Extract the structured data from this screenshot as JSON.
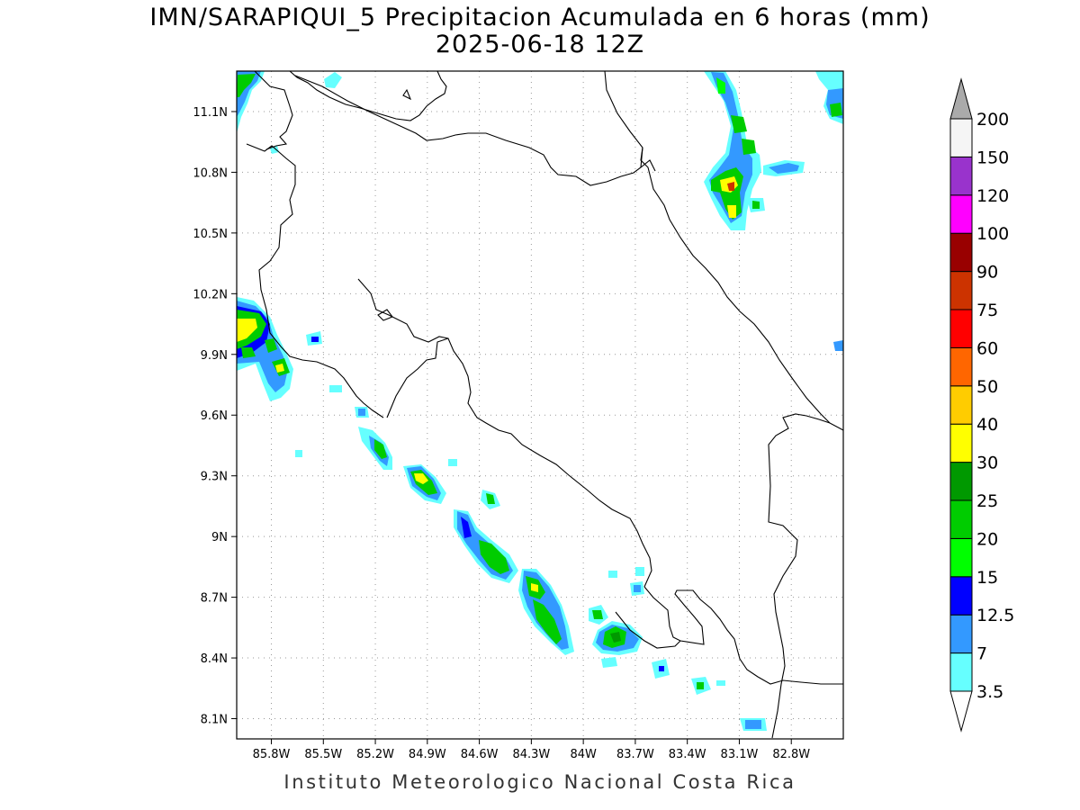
{
  "title": {
    "line1": "IMN/SARAPIQUI_5 Precipitacion Acumulada en 6 horas (mm)",
    "line2": "2025-06-18 12Z"
  },
  "footer": "Instituto Meteorologico Nacional Costa Rica",
  "map": {
    "lon_range": [
      -86.0,
      -82.5
    ],
    "lat_range": [
      8.0,
      11.3
    ],
    "lon_ticks": [
      {
        "value": -85.8,
        "label": "85.8W"
      },
      {
        "value": -85.5,
        "label": "85.5W"
      },
      {
        "value": -85.2,
        "label": "85.2W"
      },
      {
        "value": -84.9,
        "label": "84.9W"
      },
      {
        "value": -84.6,
        "label": "84.6W"
      },
      {
        "value": -84.3,
        "label": "84.3W"
      },
      {
        "value": -84.0,
        "label": "84W"
      },
      {
        "value": -83.7,
        "label": "83.7W"
      },
      {
        "value": -83.4,
        "label": "83.4W"
      },
      {
        "value": -83.1,
        "label": "83.1W"
      },
      {
        "value": -82.8,
        "label": "82.8W"
      }
    ],
    "lat_ticks": [
      {
        "value": 8.1,
        "label": "8.1N"
      },
      {
        "value": 8.4,
        "label": "8.4N"
      },
      {
        "value": 8.7,
        "label": "8.7N"
      },
      {
        "value": 9.0,
        "label": "9N"
      },
      {
        "value": 9.3,
        "label": "9.3N"
      },
      {
        "value": 9.6,
        "label": "9.6N"
      },
      {
        "value": 9.9,
        "label": "9.9N"
      },
      {
        "value": 10.2,
        "label": "10.2N"
      },
      {
        "value": 10.5,
        "label": "10.5N"
      },
      {
        "value": 10.8,
        "label": "10.8N"
      },
      {
        "value": 11.1,
        "label": "11.1N"
      }
    ],
    "grid": "dotted",
    "boundary_color": "#000000"
  },
  "colorbar": {
    "levels": [
      "3.5",
      "7",
      "12.5",
      "15",
      "20",
      "25",
      "30",
      "40",
      "50",
      "60",
      "75",
      "90",
      "100",
      "120",
      "150",
      "200"
    ],
    "colors": [
      "#66ffff",
      "#3399ff",
      "#0000ff",
      "#00ff00",
      "#00cc00",
      "#009900",
      "#ffff00",
      "#ffcc00",
      "#ff6600",
      "#ff0000",
      "#cc3300",
      "#990000",
      "#ff00ff",
      "#9933cc",
      "#f5f5f5",
      "#aaaaaa"
    ],
    "under_color": "#ffffff",
    "over_color": "#aaaaaa"
  }
}
